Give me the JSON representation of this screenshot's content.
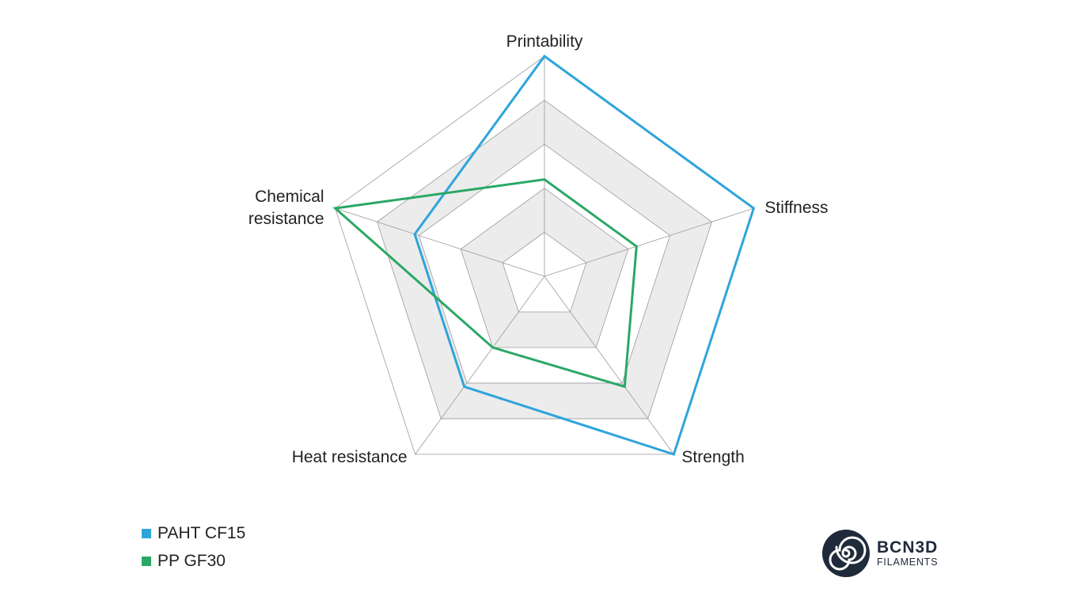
{
  "chart_data": {
    "type": "radar",
    "axes": [
      "Printability",
      "Stiffness",
      "Strength",
      "Heat resistance",
      "Chemical resistance"
    ],
    "axis_label_lines": [
      [
        "Printability"
      ],
      [
        "Stiffness"
      ],
      [
        "Strength"
      ],
      [
        "Heat resistance"
      ],
      [
        "Chemical",
        "resistance"
      ]
    ],
    "rlim": [
      0,
      5
    ],
    "levels": 5,
    "grid": true,
    "legend_position": "bottom-left",
    "series": [
      {
        "name": "PAHT CF15",
        "values": [
          5,
          5,
          5,
          3.1,
          3.1
        ],
        "color": "#2fa4dc"
      },
      {
        "name": "PP GF30",
        "values": [
          2.2,
          2.2,
          3.1,
          2.0,
          5
        ],
        "color": "#2aa866"
      }
    ]
  },
  "logo": {
    "brand": "BCN3D",
    "sub": "FILAMENTS"
  },
  "colors": {
    "grid_band": "#ececec",
    "grid_line": "#9a9a9a",
    "logo_dark": "#1f2a3a"
  }
}
